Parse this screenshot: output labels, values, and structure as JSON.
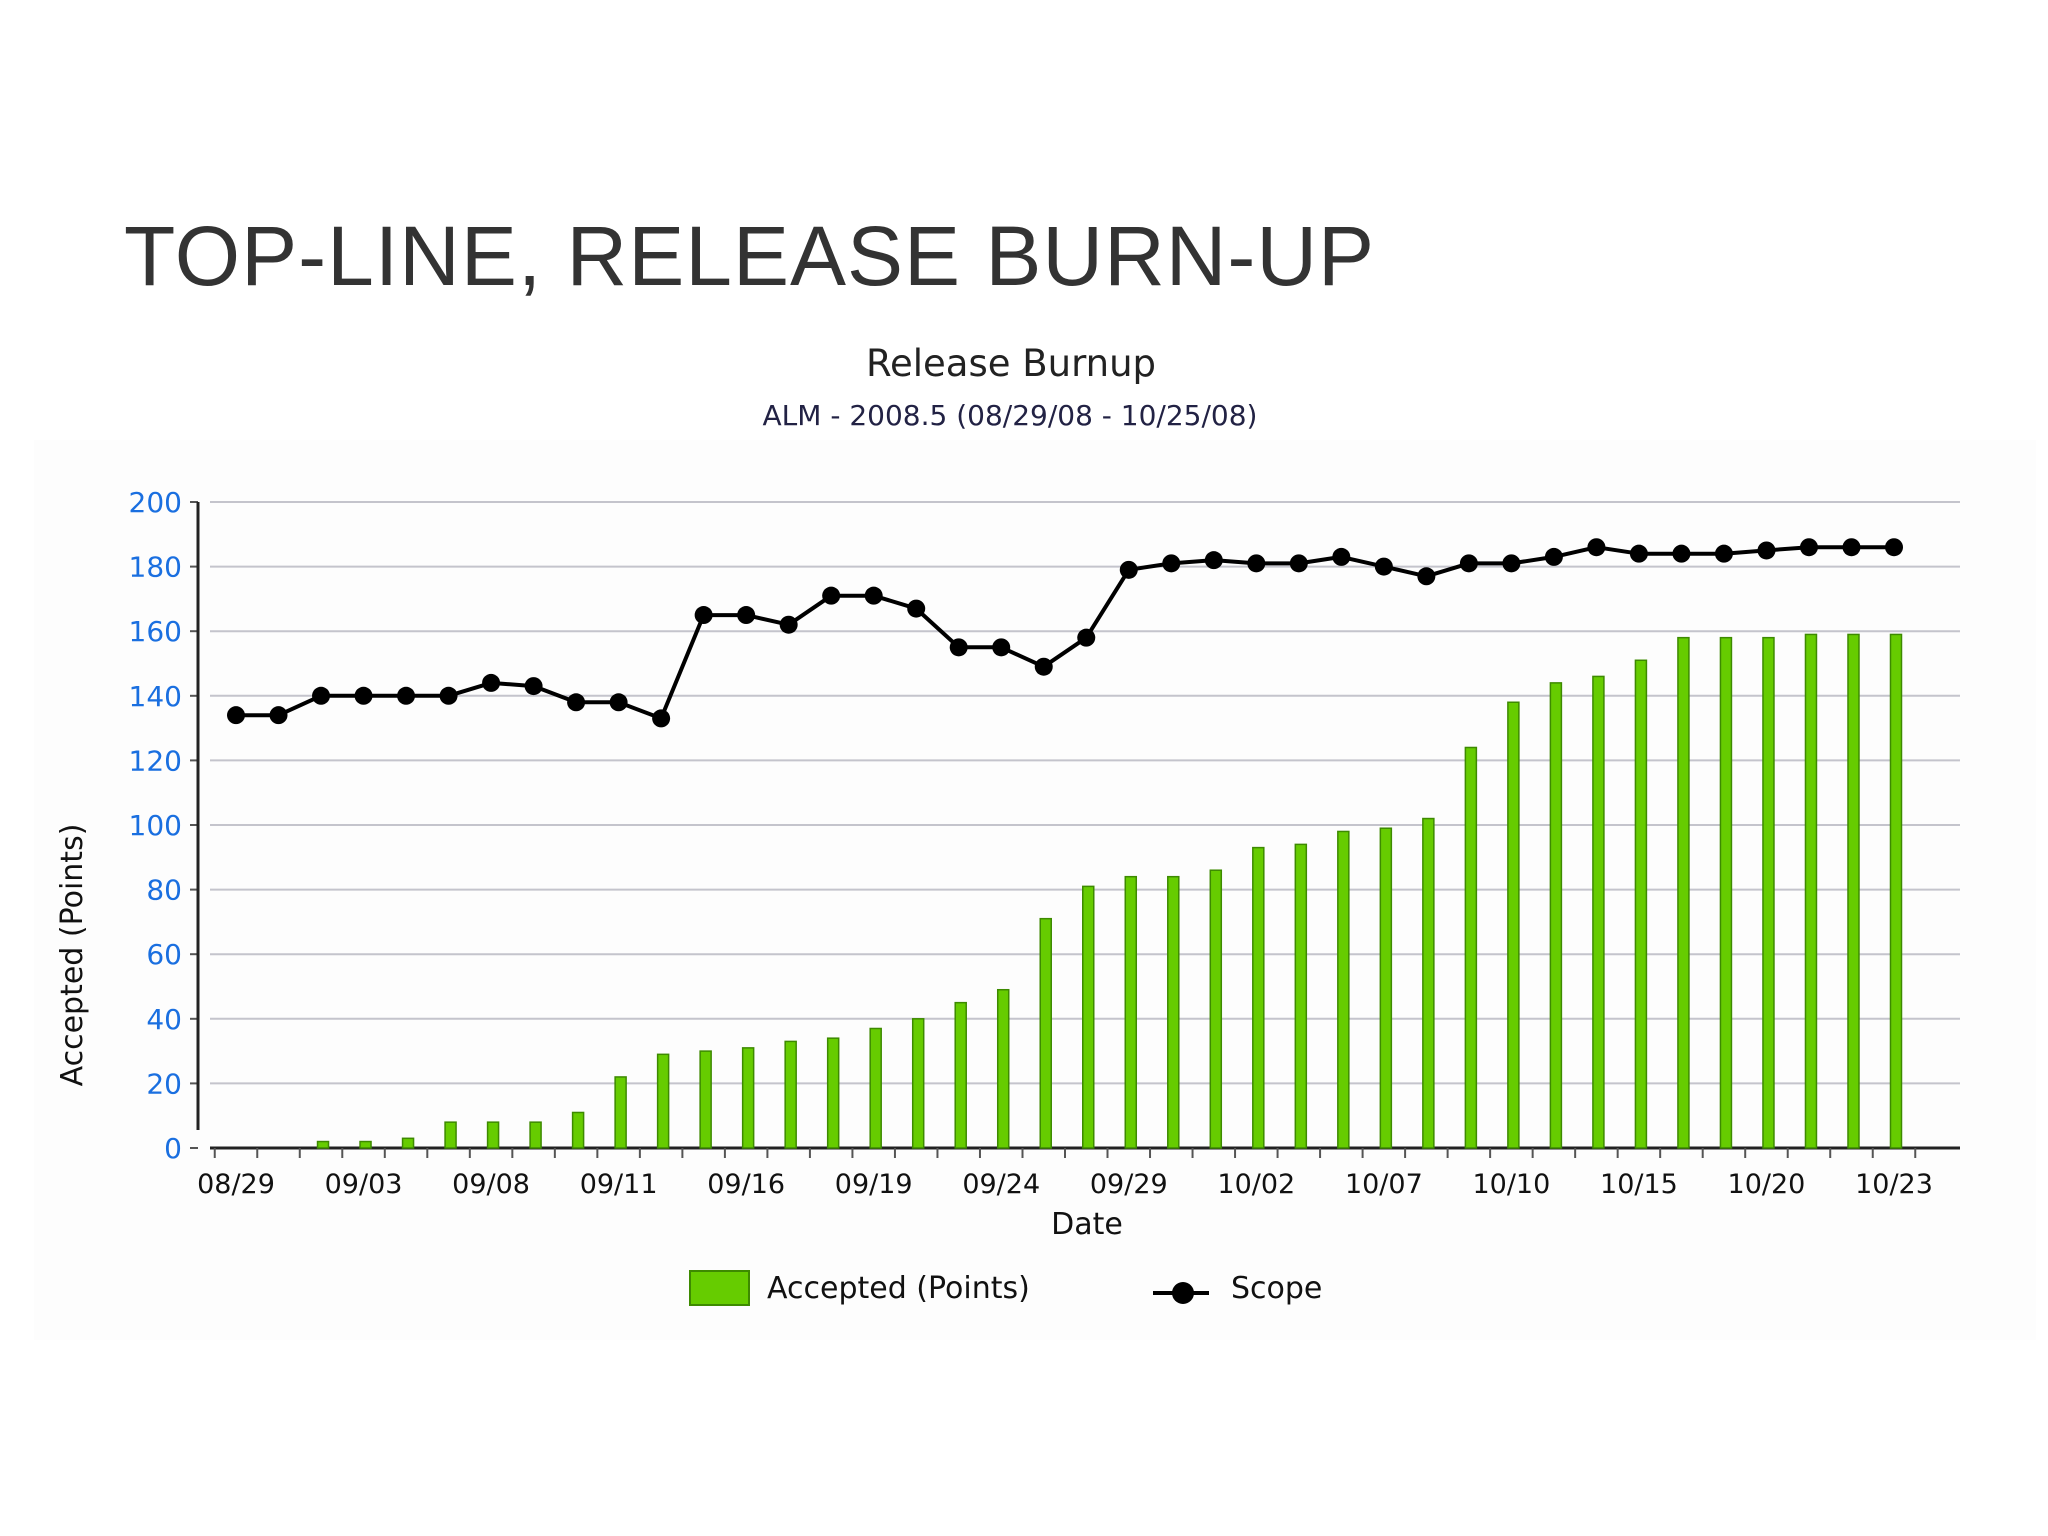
{
  "slide": {
    "title": "TOP-LINE, RELEASE BURN-UP"
  },
  "chart_data": {
    "type": "bar",
    "title": "Release Burnup",
    "subtitle": "ALM - 2008.5 (08/29/08 - 10/25/08)",
    "xlabel": "Date",
    "ylabel": "Accepted (Points)",
    "ylim": [
      0,
      200
    ],
    "yticks": [
      0,
      20,
      40,
      60,
      80,
      100,
      120,
      140,
      160,
      180,
      200
    ],
    "xtick_labels": [
      "08/29",
      "09/03",
      "09/08",
      "09/11",
      "09/16",
      "09/19",
      "09/24",
      "09/29",
      "10/02",
      "10/07",
      "10/10",
      "10/15",
      "10/20",
      "10/23"
    ],
    "grid": true,
    "legend_position": "bottom",
    "series": [
      {
        "name": "Accepted (Points)",
        "kind": "bar",
        "color": "#66cc00",
        "values": [
          0,
          0,
          2,
          2,
          3,
          8,
          8,
          8,
          11,
          22,
          29,
          30,
          31,
          33,
          34,
          37,
          40,
          45,
          49,
          71,
          81,
          84,
          84,
          86,
          93,
          94,
          98,
          99,
          102,
          124,
          138,
          144,
          146,
          151,
          158,
          158,
          158,
          159,
          159,
          159
        ]
      },
      {
        "name": "Scope",
        "kind": "line",
        "color": "#000000",
        "values": [
          134,
          134,
          140,
          140,
          140,
          140,
          144,
          143,
          138,
          138,
          133,
          165,
          165,
          162,
          171,
          171,
          167,
          155,
          155,
          149,
          158,
          179,
          181,
          182,
          181,
          181,
          183,
          180,
          177,
          181,
          181,
          183,
          186,
          184,
          184,
          184,
          185,
          186,
          186,
          186
        ]
      }
    ]
  }
}
